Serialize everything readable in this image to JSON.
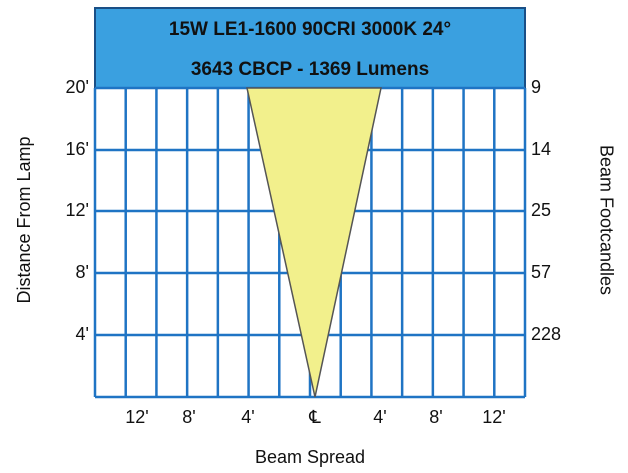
{
  "header": {
    "lines": [
      "15W LE1-1600 90CRI 3000K 24°",
      "3643 CBCP - 1369 Lumens"
    ]
  },
  "left_axis": {
    "label": "Distance From Lamp",
    "ticks": [
      "20'",
      "16'",
      "12'",
      "8'",
      "4'"
    ]
  },
  "right_axis": {
    "label": "Beam Footcandles",
    "ticks": [
      "9",
      "14",
      "25",
      "57",
      "228"
    ]
  },
  "bottom_axis": {
    "label": "Beam Spread",
    "ticks": [
      "12'",
      "8'",
      "4'",
      "℄",
      "4'",
      "8'",
      "12'"
    ]
  }
}
